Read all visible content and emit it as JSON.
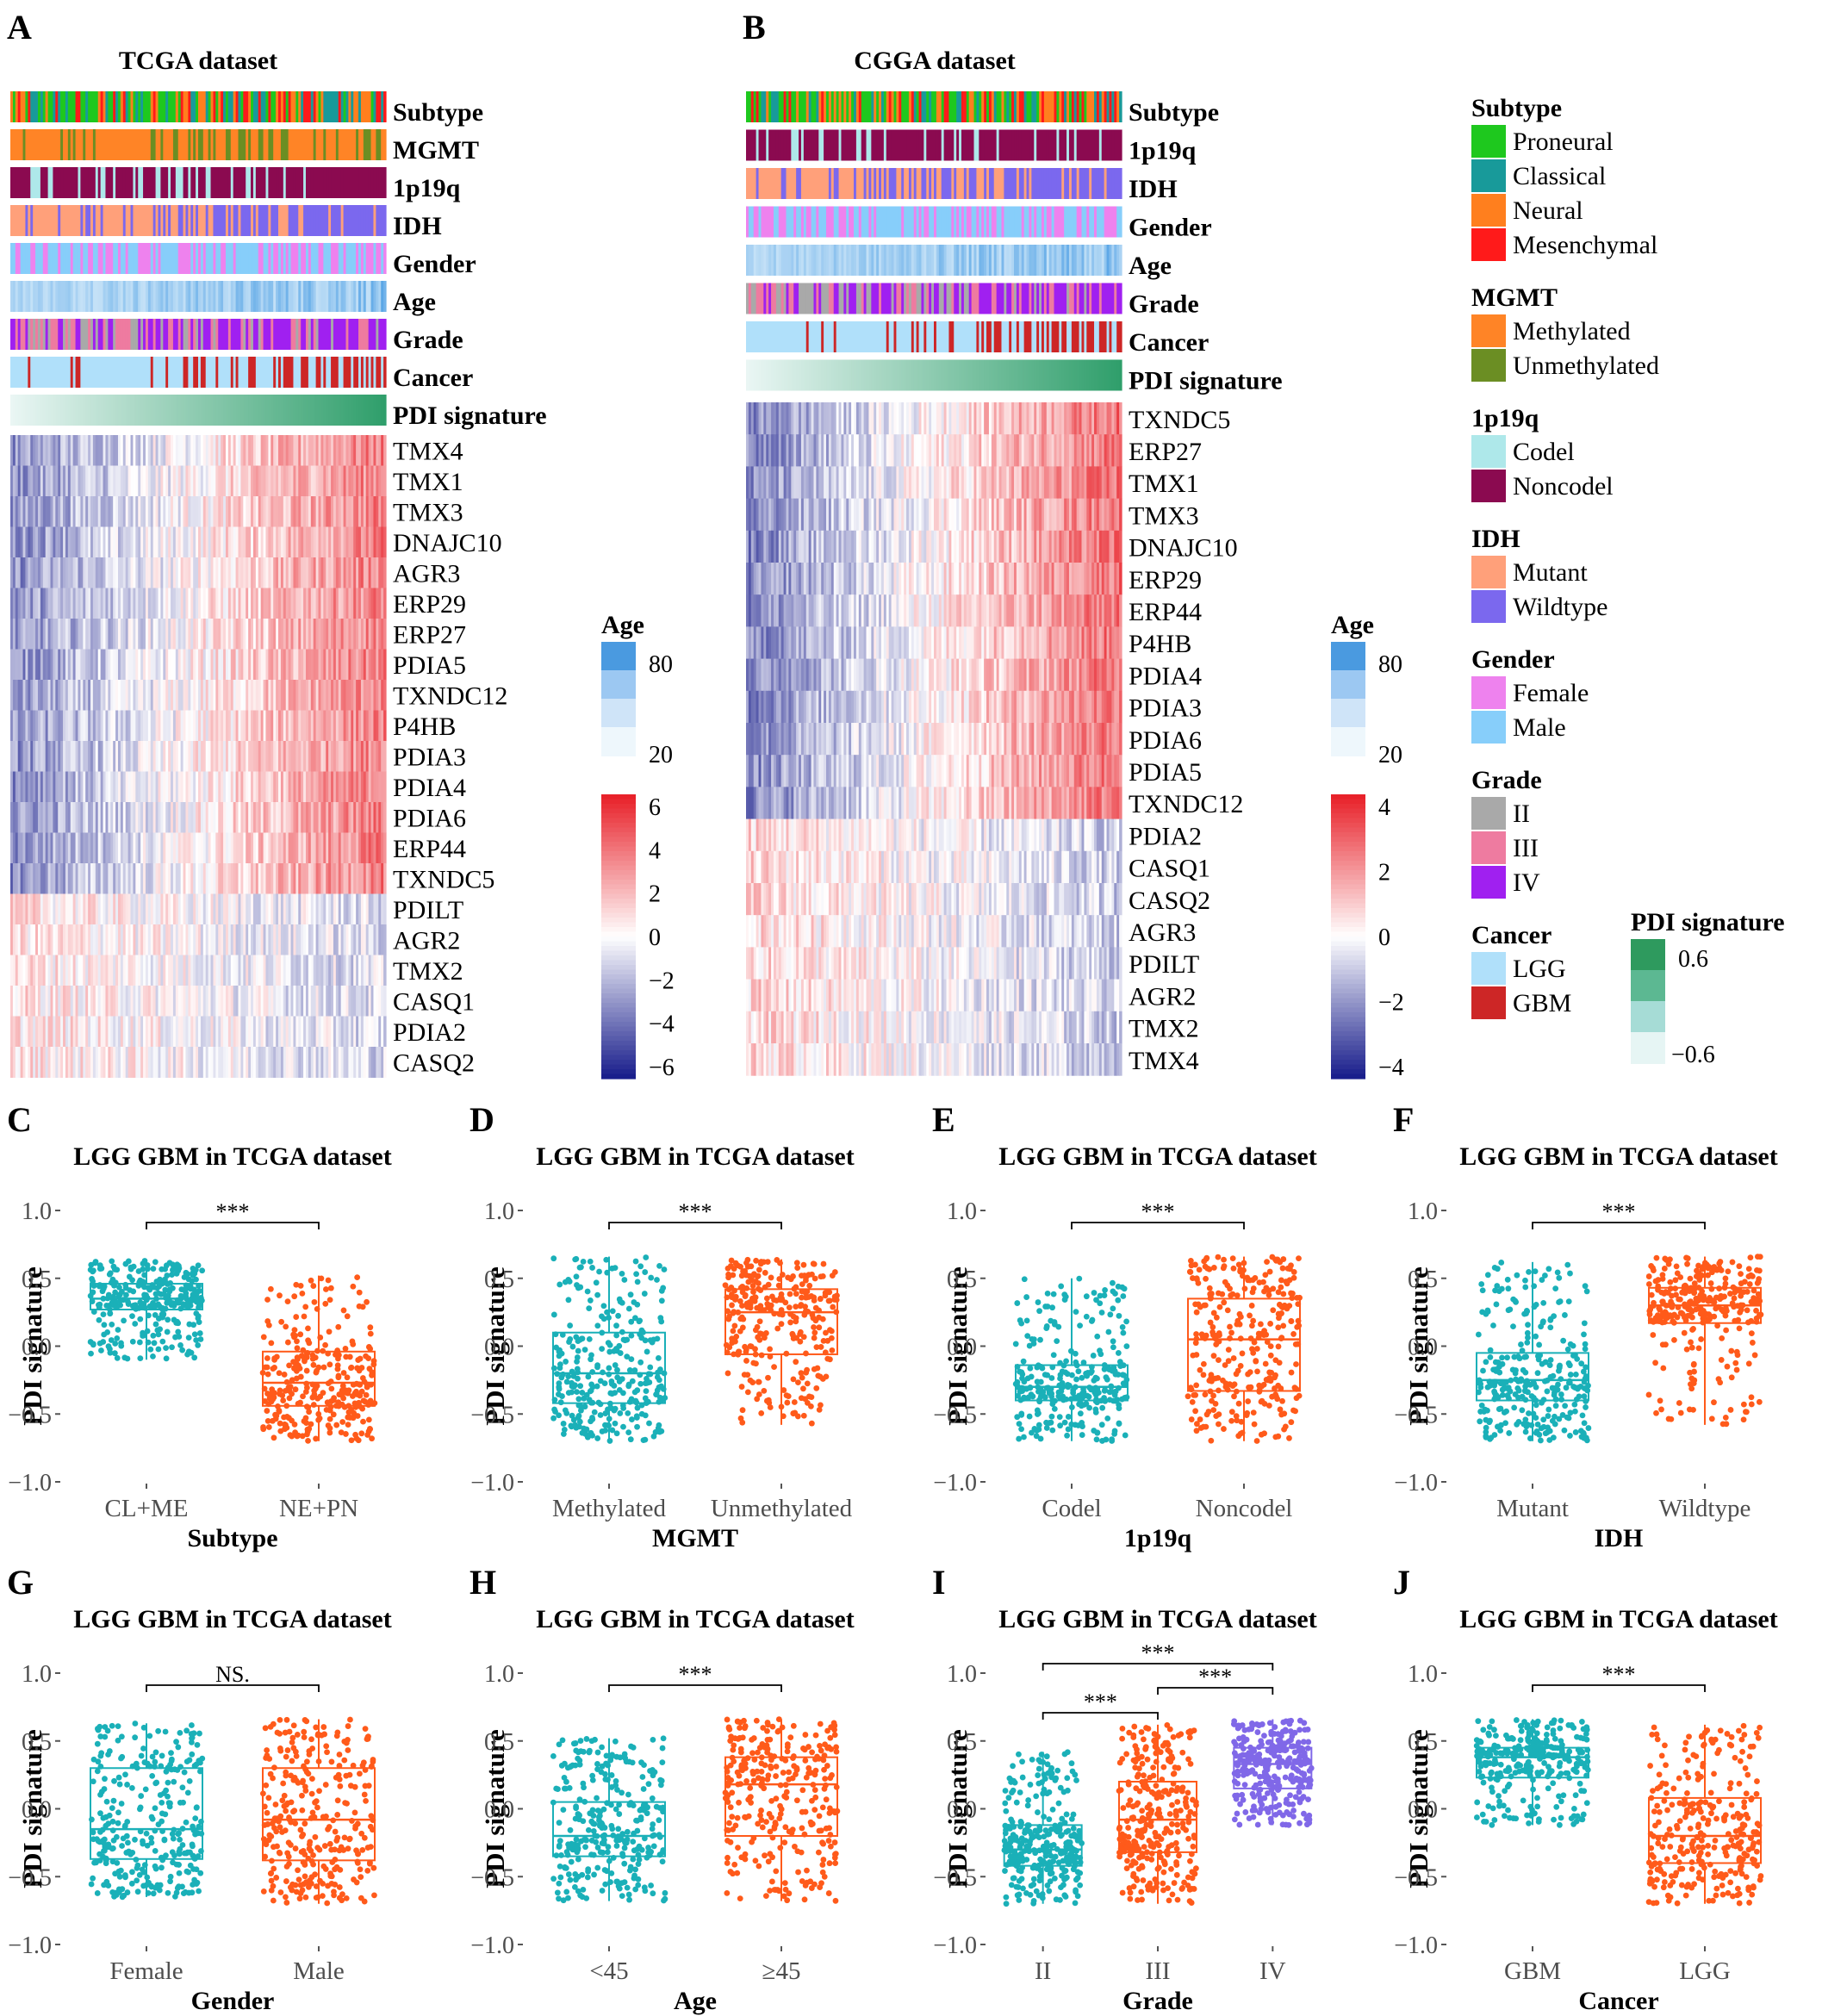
{
  "panels": {
    "A": {
      "letter": "A",
      "title": "TCGA dataset",
      "tracks": [
        "Subtype",
        "MGMT",
        "1p19q",
        "IDH",
        "Gender",
        "Age",
        "Grade",
        "Cancer",
        "PDI signature"
      ],
      "genes": [
        "TMX4",
        "TMX1",
        "TMX3",
        "DNAJC10",
        "AGR3",
        "ERP29",
        "ERP27",
        "PDIA5",
        "TXNDC12",
        "P4HB",
        "PDIA3",
        "PDIA4",
        "PDIA6",
        "ERP44",
        "TXNDC5",
        "PDILT",
        "AGR2",
        "TMX2",
        "CASQ1",
        "PDIA2",
        "CASQ2"
      ],
      "age_legend": {
        "title": "Age",
        "ticks": [
          "80",
          "20"
        ]
      },
      "expr_legend": {
        "ticks": [
          "6",
          "4",
          "2",
          "0",
          "−2",
          "−4",
          "−6"
        ]
      }
    },
    "B": {
      "letter": "B",
      "title": "CGGA dataset",
      "tracks": [
        "Subtype",
        "1p19q",
        "IDH",
        "Gender",
        "Age",
        "Grade",
        "Cancer",
        "PDI signature"
      ],
      "genes": [
        "TXNDC5",
        "ERP27",
        "TMX1",
        "TMX3",
        "DNAJC10",
        "ERP29",
        "ERP44",
        "P4HB",
        "PDIA4",
        "PDIA3",
        "PDIA6",
        "PDIA5",
        "TXNDC12",
        "PDIA2",
        "CASQ1",
        "CASQ2",
        "AGR3",
        "PDILT",
        "AGR2",
        "TMX2",
        "TMX4"
      ],
      "age_legend": {
        "title": "Age",
        "ticks": [
          "80",
          "20"
        ]
      },
      "expr_legend": {
        "ticks": [
          "4",
          "2",
          "0",
          "−2",
          "−4"
        ]
      }
    }
  },
  "legend": {
    "groups": [
      {
        "title": "Subtype",
        "items": [
          {
            "label": "Proneural",
            "color": "#1ec81e"
          },
          {
            "label": "Classical",
            "color": "#189a9a"
          },
          {
            "label": "Neural",
            "color": "#ff7f1e"
          },
          {
            "label": "Mesenchymal",
            "color": "#ff1a1a"
          }
        ]
      },
      {
        "title": "MGMT",
        "items": [
          {
            "label": "Methylated",
            "color": "#ff8426"
          },
          {
            "label": "Unmethylated",
            "color": "#6b8e23"
          }
        ]
      },
      {
        "title": "1p19q",
        "items": [
          {
            "label": "Codel",
            "color": "#aee8ea"
          },
          {
            "label": "Noncodel",
            "color": "#8b0a50"
          }
        ]
      },
      {
        "title": "IDH",
        "items": [
          {
            "label": "Mutant",
            "color": "#ffa07a"
          },
          {
            "label": "Wildtype",
            "color": "#7b68ee"
          }
        ]
      },
      {
        "title": "Gender",
        "items": [
          {
            "label": "Female",
            "color": "#ee82ee"
          },
          {
            "label": "Male",
            "color": "#87cefa"
          }
        ]
      },
      {
        "title": "Grade",
        "items": [
          {
            "label": "II",
            "color": "#a9a9a9"
          },
          {
            "label": "III",
            "color": "#ee7ba0"
          },
          {
            "label": "IV",
            "color": "#a020f0"
          }
        ]
      },
      {
        "title": "Cancer",
        "items": [
          {
            "label": "LGG",
            "color": "#b0e0fa"
          },
          {
            "label": "GBM",
            "color": "#cd2626"
          }
        ]
      }
    ],
    "pdi": {
      "title": "PDI signature",
      "ticks": [
        "0.6",
        "−0.6"
      ]
    }
  },
  "chart_data": [
    {
      "panel": "C",
      "type": "box",
      "title": "LGG GBM in TCGA dataset",
      "xlabel": "Subtype",
      "ylabel": "PDI signature",
      "ylim": [
        -1.0,
        1.0
      ],
      "yticks": [
        "1.0",
        "0.5",
        "0.0",
        "−0.5",
        "−1.0"
      ],
      "categories": [
        "CL+ME",
        "NE+PN"
      ],
      "colors": [
        "#1ab0b8",
        "#ff5a1a"
      ],
      "boxes": [
        {
          "q1": 0.27,
          "median": 0.35,
          "q3": 0.46,
          "wlo": -0.1,
          "whi": 0.63
        },
        {
          "q1": -0.44,
          "median": -0.27,
          "q3": -0.04,
          "wlo": -0.7,
          "whi": 0.52
        }
      ],
      "annotations": [
        {
          "pair": [
            0,
            1
          ],
          "label": "***"
        }
      ]
    },
    {
      "panel": "D",
      "type": "box",
      "title": "LGG GBM in TCGA dataset",
      "xlabel": "MGMT",
      "ylabel": "PDI signature",
      "ylim": [
        -1.0,
        1.0
      ],
      "yticks": [
        "1.0",
        "0.5",
        "0.0",
        "−0.5",
        "−1.0"
      ],
      "categories": [
        "Methylated",
        "Unmethylated"
      ],
      "colors": [
        "#1ab0b8",
        "#ff5a1a"
      ],
      "boxes": [
        {
          "q1": -0.42,
          "median": -0.2,
          "q3": 0.1,
          "wlo": -0.7,
          "whi": 0.66
        },
        {
          "q1": -0.06,
          "median": 0.25,
          "q3": 0.42,
          "wlo": -0.58,
          "whi": 0.64
        }
      ],
      "annotations": [
        {
          "pair": [
            0,
            1
          ],
          "label": "***"
        }
      ]
    },
    {
      "panel": "E",
      "type": "box",
      "title": "LGG GBM in TCGA dataset",
      "xlabel": "1p19q",
      "ylabel": "PDI signature",
      "ylim": [
        -1.0,
        1.0
      ],
      "yticks": [
        "1.0",
        "0.5",
        "0.0",
        "−0.5",
        "−1.0"
      ],
      "categories": [
        "Codel",
        "Noncodel"
      ],
      "colors": [
        "#1ab0b8",
        "#ff5a1a"
      ],
      "boxes": [
        {
          "q1": -0.4,
          "median": -0.3,
          "q3": -0.14,
          "wlo": -0.7,
          "whi": 0.5
        },
        {
          "q1": -0.33,
          "median": 0.05,
          "q3": 0.35,
          "wlo": -0.7,
          "whi": 0.66
        }
      ],
      "annotations": [
        {
          "pair": [
            0,
            1
          ],
          "label": "***"
        }
      ]
    },
    {
      "panel": "F",
      "type": "box",
      "title": "LGG GBM in TCGA dataset",
      "xlabel": "IDH",
      "ylabel": "PDI signature",
      "ylim": [
        -1.0,
        1.0
      ],
      "yticks": [
        "1.0",
        "0.5",
        "0.0",
        "−0.5",
        "−1.0"
      ],
      "categories": [
        "Mutant",
        "Wildtype"
      ],
      "colors": [
        "#1ab0b8",
        "#ff5a1a"
      ],
      "boxes": [
        {
          "q1": -0.4,
          "median": -0.25,
          "q3": -0.05,
          "wlo": -0.7,
          "whi": 0.62
        },
        {
          "q1": 0.17,
          "median": 0.3,
          "q3": 0.43,
          "wlo": -0.58,
          "whi": 0.66
        }
      ],
      "annotations": [
        {
          "pair": [
            0,
            1
          ],
          "label": "***"
        }
      ]
    },
    {
      "panel": "G",
      "type": "box",
      "title": "LGG GBM in TCGA dataset",
      "xlabel": "Gender",
      "ylabel": "PDI signature",
      "ylim": [
        -1.0,
        1.0
      ],
      "yticks": [
        "1.0",
        "0.5",
        "0.0",
        "−0.5",
        "−1.0"
      ],
      "categories": [
        "Female",
        "Male"
      ],
      "colors": [
        "#1ab0b8",
        "#ff5a1a"
      ],
      "boxes": [
        {
          "q1": -0.37,
          "median": -0.15,
          "q3": 0.3,
          "wlo": -0.65,
          "whi": 0.63
        },
        {
          "q1": -0.38,
          "median": -0.08,
          "q3": 0.3,
          "wlo": -0.7,
          "whi": 0.66
        }
      ],
      "annotations": [
        {
          "pair": [
            0,
            1
          ],
          "label": "NS."
        }
      ]
    },
    {
      "panel": "H",
      "type": "box",
      "title": "LGG GBM in TCGA dataset",
      "xlabel": "Age",
      "ylabel": "PDI signature",
      "ylim": [
        -1.0,
        1.0
      ],
      "yticks": [
        "1.0",
        "0.5",
        "0.0",
        "−0.5",
        "−1.0"
      ],
      "categories": [
        "<45",
        "≥45"
      ],
      "colors": [
        "#1ab0b8",
        "#ff5a1a"
      ],
      "boxes": [
        {
          "q1": -0.35,
          "median": -0.2,
          "q3": 0.05,
          "wlo": -0.68,
          "whi": 0.52
        },
        {
          "q1": -0.2,
          "median": 0.18,
          "q3": 0.38,
          "wlo": -0.68,
          "whi": 0.66
        }
      ],
      "annotations": [
        {
          "pair": [
            0,
            1
          ],
          "label": "***"
        }
      ]
    },
    {
      "panel": "I",
      "type": "box",
      "title": "LGG GBM in TCGA dataset",
      "xlabel": "Grade",
      "ylabel": "PDI signature",
      "ylim": [
        -1.0,
        1.0
      ],
      "yticks": [
        "1.0",
        "0.5",
        "0.0",
        "−0.5",
        "−1.0"
      ],
      "categories": [
        "II",
        "III",
        "IV"
      ],
      "colors": [
        "#1ab0b8",
        "#ff5a1a",
        "#8068e8"
      ],
      "boxes": [
        {
          "q1": -0.42,
          "median": -0.3,
          "q3": -0.12,
          "wlo": -0.7,
          "whi": 0.42
        },
        {
          "q1": -0.32,
          "median": -0.08,
          "q3": 0.2,
          "wlo": -0.7,
          "whi": 0.62
        },
        {
          "q1": 0.15,
          "median": 0.33,
          "q3": 0.45,
          "wlo": -0.12,
          "whi": 0.66
        }
      ],
      "annotations": [
        {
          "pair": [
            0,
            2
          ],
          "label": "***"
        },
        {
          "pair": [
            0,
            1
          ],
          "label": "***"
        },
        {
          "pair": [
            1,
            2
          ],
          "label": "***"
        }
      ]
    },
    {
      "panel": "J",
      "type": "box",
      "title": "LGG GBM in TCGA dataset",
      "xlabel": "Cancer",
      "ylabel": "PDI signature",
      "ylim": [
        -1.0,
        1.0
      ],
      "yticks": [
        "1.0",
        "0.5",
        "0.0",
        "−0.5",
        "−1.0"
      ],
      "categories": [
        "GBM",
        "LGG"
      ],
      "colors": [
        "#1ab0b8",
        "#ff5a1a"
      ],
      "boxes": [
        {
          "q1": 0.23,
          "median": 0.38,
          "q3": 0.45,
          "wlo": -0.12,
          "whi": 0.66
        },
        {
          "q1": -0.4,
          "median": -0.2,
          "q3": 0.08,
          "wlo": -0.7,
          "whi": 0.62
        }
      ],
      "annotations": [
        {
          "pair": [
            0,
            1
          ],
          "label": "***"
        }
      ]
    }
  ]
}
